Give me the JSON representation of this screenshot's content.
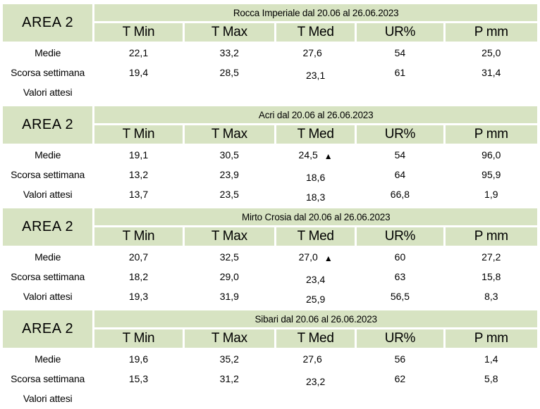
{
  "header": {
    "area_label": "AREA 2",
    "columns": [
      "T Min",
      "T Max",
      "T Med",
      "UR%",
      "P mm"
    ]
  },
  "markers": {
    "up_triangle": "▲"
  },
  "tables": [
    {
      "title": "Rocca Imperiale  dal 20.06 al 26.06.2023",
      "rows": [
        {
          "label": "Medie",
          "values": [
            "22,1",
            "33,2",
            "27,6",
            "54",
            "25,0"
          ]
        },
        {
          "label": "Scorsa settimana",
          "values": [
            "19,4",
            "28,5",
            "23,1",
            "61",
            "31,4"
          ]
        },
        {
          "label": "Valori attesi",
          "values": [
            "",
            "",
            "",
            "",
            ""
          ]
        }
      ]
    },
    {
      "title": "Acri dal 20.06 al 26.06.2023",
      "rows": [
        {
          "label": "Medie",
          "values": [
            "19,1",
            "30,5",
            "24,5",
            "54",
            "96,0"
          ],
          "marker": "▲"
        },
        {
          "label": "Scorsa settimana",
          "values": [
            "13,2",
            "23,9",
            "18,6",
            "64",
            "95,9"
          ]
        },
        {
          "label": "Valori attesi",
          "values": [
            "13,7",
            "23,5",
            "18,3",
            "66,8",
            "1,9"
          ]
        }
      ]
    },
    {
      "title": "Mirto Crosia dal 20.06 al 26.06.2023",
      "rows": [
        {
          "label": "Medie",
          "values": [
            "20,7",
            "32,5",
            "27,0",
            "60",
            "27,2"
          ],
          "marker": "▲"
        },
        {
          "label": "Scorsa settimana",
          "values": [
            "18,2",
            "29,0",
            "23,4",
            "63",
            "15,8"
          ]
        },
        {
          "label": "Valori attesi",
          "values": [
            "19,3",
            "31,9",
            "25,9",
            "56,5",
            "8,3"
          ]
        }
      ]
    },
    {
      "title": "Sibari dal 20.06 al 26.06.2023",
      "rows": [
        {
          "label": "Medie",
          "values": [
            "19,6",
            "35,2",
            "27,6",
            "56",
            "1,4"
          ]
        },
        {
          "label": "Scorsa settimana",
          "values": [
            "15,3",
            "31,2",
            "23,2",
            "62",
            "5,8"
          ]
        },
        {
          "label": "Valori attesi",
          "values": [
            "",
            "",
            "",
            "",
            ""
          ]
        }
      ]
    }
  ]
}
